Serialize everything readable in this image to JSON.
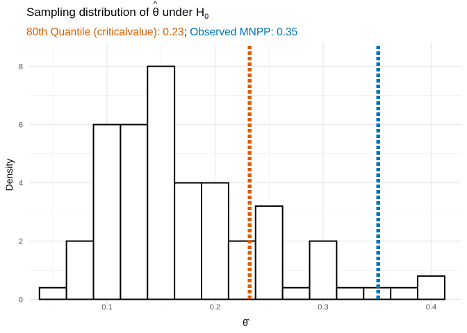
{
  "title": {
    "prefix": "Sampling distribution of ",
    "symbol": "θ",
    "hat": "^",
    "middle": " under H",
    "subscript": "0"
  },
  "subtitle": {
    "quantile_text": "80th Quantile (criticalvalue): 0.23",
    "separator": ";",
    "observed_text": " Observed MNPP: 0.35"
  },
  "chart_data": {
    "type": "bar",
    "histogram": true,
    "xlabel": "θ̂",
    "ylabel": "Density",
    "xlim": [
      0.028,
      0.428
    ],
    "ylim": [
      -0.25,
      8.8
    ],
    "xticks": [
      0.1,
      0.2,
      0.3,
      0.4
    ],
    "xtick_labels": [
      "0.1",
      "0.2",
      "0.3",
      "0.4"
    ],
    "yticks": [
      0,
      2,
      4,
      6,
      8
    ],
    "ytick_labels": [
      "0",
      "2",
      "4",
      "6",
      "8"
    ],
    "bin_width": 0.025,
    "bins": [
      {
        "x0": 0.0375,
        "x1": 0.0625,
        "density": 0.4
      },
      {
        "x0": 0.0625,
        "x1": 0.0875,
        "density": 2
      },
      {
        "x0": 0.0875,
        "x1": 0.1125,
        "density": 6
      },
      {
        "x0": 0.1125,
        "x1": 0.1375,
        "density": 6
      },
      {
        "x0": 0.1375,
        "x1": 0.1625,
        "density": 8
      },
      {
        "x0": 0.1625,
        "x1": 0.1875,
        "density": 4
      },
      {
        "x0": 0.1875,
        "x1": 0.2125,
        "density": 4
      },
      {
        "x0": 0.2125,
        "x1": 0.2375,
        "density": 2
      },
      {
        "x0": 0.2375,
        "x1": 0.2625,
        "density": 3.2
      },
      {
        "x0": 0.2625,
        "x1": 0.2875,
        "density": 0.4
      },
      {
        "x0": 0.2875,
        "x1": 0.3125,
        "density": 2
      },
      {
        "x0": 0.3125,
        "x1": 0.3375,
        "density": 0.4
      },
      {
        "x0": 0.3375,
        "x1": 0.3625,
        "density": 0.4
      },
      {
        "x0": 0.3625,
        "x1": 0.3875,
        "density": 0.4
      },
      {
        "x0": 0.3875,
        "x1": 0.4125,
        "density": 0.8
      }
    ],
    "vlines": [
      {
        "name": "critical-value",
        "x": 0.232,
        "color": "#D55E00",
        "style": "dotted"
      },
      {
        "name": "observed-mnpp",
        "x": 0.351,
        "color": "#0072B2",
        "style": "dotted"
      }
    ],
    "grid": true,
    "theme": "minimal"
  }
}
